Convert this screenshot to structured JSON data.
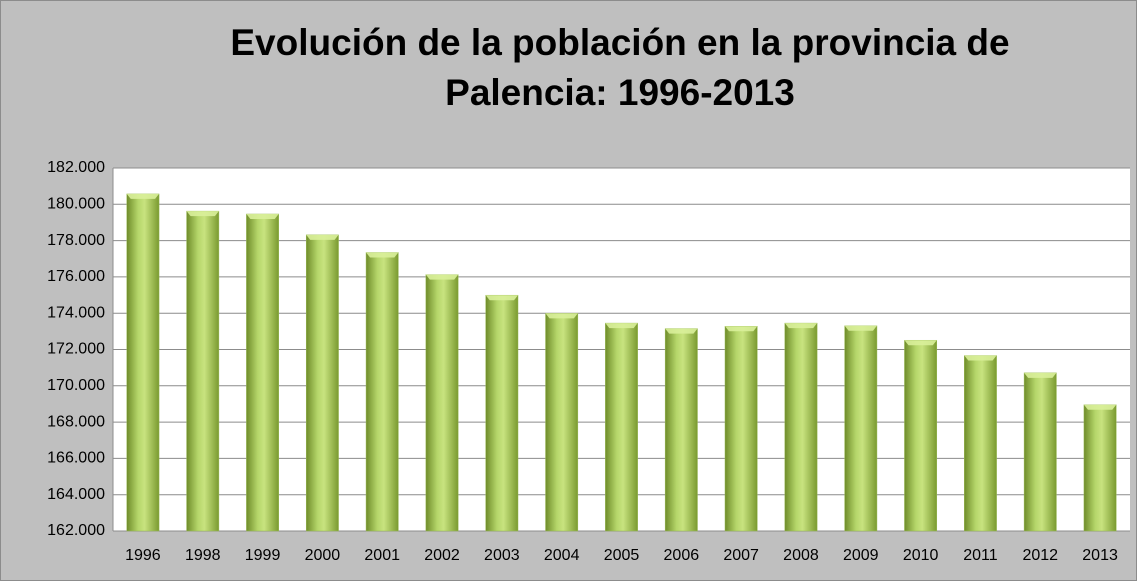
{
  "chart_data": {
    "type": "bar",
    "title": "Evolución de la población en la provincia de Palencia: 1996-2013",
    "categories": [
      "1996",
      "1998",
      "1999",
      "2000",
      "2001",
      "2002",
      "2003",
      "2004",
      "2005",
      "2006",
      "2007",
      "2008",
      "2009",
      "2010",
      "2011",
      "2012",
      "2013"
    ],
    "values": [
      180571,
      179623,
      179465,
      178316,
      177345,
      176125,
      174991,
      173990,
      173454,
      173153,
      173281,
      173454,
      173306,
      172510,
      171668,
      170713,
      168955
    ],
    "color": "#9bbb59",
    "ylim": [
      162000,
      182000
    ],
    "yticks": [
      {
        "value": 162000,
        "label": "162.000"
      },
      {
        "value": 164000,
        "label": "164.000"
      },
      {
        "value": 166000,
        "label": "166.000"
      },
      {
        "value": 168000,
        "label": "168.000"
      },
      {
        "value": 170000,
        "label": "170.000"
      },
      {
        "value": 172000,
        "label": "172.000"
      },
      {
        "value": 174000,
        "label": "174.000"
      },
      {
        "value": 176000,
        "label": "176.000"
      },
      {
        "value": 178000,
        "label": "178.000"
      },
      {
        "value": 180000,
        "label": "180.000"
      },
      {
        "value": 182000,
        "label": "182.000"
      }
    ],
    "grid": true
  }
}
